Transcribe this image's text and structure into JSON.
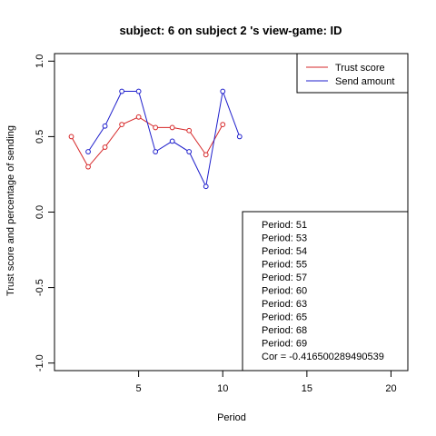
{
  "chart_data": {
    "type": "line",
    "title": "subject:  6  on subject  2 's view-game:  ID",
    "xlabel": "Period",
    "ylabel": "Trust score and percentage of sending",
    "xlim": [
      0,
      21
    ],
    "ylim": [
      -1.05,
      1.05
    ],
    "x_ticks": [
      5,
      10,
      15,
      20
    ],
    "y_ticks": [
      -1.0,
      -0.5,
      0.0,
      0.5,
      1.0
    ],
    "x_tick_labels": [
      "5",
      "10",
      "15",
      "20"
    ],
    "y_tick_labels": [
      "-1.0",
      "-0.5",
      "0.0",
      "0.5",
      "1.0"
    ],
    "grid": false,
    "legend_position": "top-right",
    "series": [
      {
        "name": "Trust score",
        "color": "#d62728",
        "x": [
          1,
          2,
          3,
          4,
          5,
          6,
          7,
          8,
          9,
          10
        ],
        "y": [
          0.5,
          0.3,
          0.43,
          0.58,
          0.63,
          0.56,
          0.56,
          0.54,
          0.38,
          0.58
        ]
      },
      {
        "name": "Send amount",
        "color": "#1f1fcc",
        "x": [
          2,
          3,
          4,
          5,
          6,
          7,
          8,
          9,
          10,
          11
        ],
        "y": [
          0.4,
          0.57,
          0.8,
          0.8,
          0.4,
          0.47,
          0.4,
          0.17,
          0.8,
          0.5
        ]
      }
    ],
    "annotations": [
      "Period:  51",
      "Period:  53",
      "Period:  54",
      "Period:  55",
      "Period:  57",
      "Period:  60",
      "Period:  63",
      "Period:  65",
      "Period:  68",
      "Period:  69",
      "Cor =  -0.416500289490539"
    ]
  }
}
